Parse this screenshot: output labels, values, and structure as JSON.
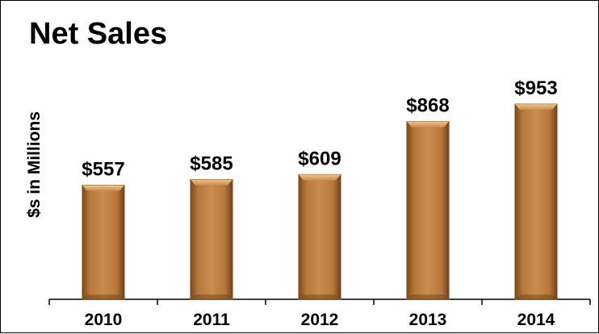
{
  "chart_data": {
    "type": "bar",
    "title": "Net Sales",
    "ylabel": "$s in Millions",
    "xlabel": "",
    "categories": [
      "2010",
      "2011",
      "2012",
      "2013",
      "2014"
    ],
    "values": [
      557,
      585,
      609,
      868,
      953
    ],
    "value_labels": [
      "$557",
      "$585",
      "$609",
      "$868",
      "$953"
    ],
    "ylim": [
      0,
      1300
    ],
    "grid": false,
    "legend": "none",
    "colors": {
      "bar_fill": "#b7773a",
      "bar_dark": "#7a4a1c",
      "bar_light": "#e6b27a",
      "axis": "#000000"
    }
  }
}
